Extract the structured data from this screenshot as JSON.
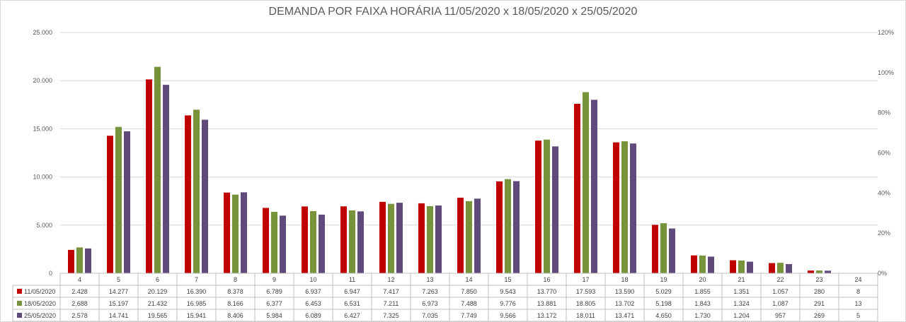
{
  "chart_data": {
    "type": "bar",
    "title": "DEMANDA POR FAIXA HORÁRIA 11/05/2020 x 18/05/2020 x 25/05/2020",
    "categories": [
      "4",
      "5",
      "6",
      "7",
      "8",
      "9",
      "10",
      "11",
      "12",
      "13",
      "14",
      "15",
      "16",
      "17",
      "18",
      "19",
      "20",
      "21",
      "22",
      "23",
      "24"
    ],
    "series": [
      {
        "name": "11/05/2020",
        "color": "#c00000",
        "values": [
          2428,
          14277,
          20129,
          16390,
          8378,
          6789,
          6937,
          6947,
          7417,
          7263,
          7850,
          9543,
          13770,
          17593,
          13590,
          5029,
          1855,
          1351,
          1057,
          280,
          8
        ],
        "labels": [
          "2.428",
          "14.277",
          "20.129",
          "16.390",
          "8.378",
          "6.789",
          "6.937",
          "6.947",
          "7.417",
          "7.263",
          "7.850",
          "9.543",
          "13.770",
          "17.593",
          "13.590",
          "5.029",
          "1.855",
          "1.351",
          "1.057",
          "280",
          "8"
        ]
      },
      {
        "name": "18/05/2020",
        "color": "#77933c",
        "values": [
          2688,
          15197,
          21432,
          16985,
          8166,
          6377,
          6453,
          6531,
          7211,
          6973,
          7488,
          9776,
          13881,
          18805,
          13702,
          5198,
          1843,
          1324,
          1087,
          291,
          13
        ],
        "labels": [
          "2.688",
          "15.197",
          "21.432",
          "16.985",
          "8.166",
          "6.377",
          "6.453",
          "6.531",
          "7.211",
          "6.973",
          "7.488",
          "9.776",
          "13.881",
          "18.805",
          "13.702",
          "5.198",
          "1.843",
          "1.324",
          "1.087",
          "291",
          "13"
        ]
      },
      {
        "name": "25/05/2020",
        "color": "#604a7b",
        "values": [
          2578,
          14741,
          19565,
          15941,
          8406,
          5984,
          6089,
          6427,
          7325,
          7035,
          7749,
          9566,
          13172,
          18011,
          13471,
          4650,
          1730,
          1204,
          957,
          269,
          5
        ],
        "labels": [
          "2.578",
          "14.741",
          "19.565",
          "15.941",
          "8.406",
          "5.984",
          "6.089",
          "6.427",
          "7.325",
          "7.035",
          "7.749",
          "9.566",
          "13.172",
          "18.011",
          "13.471",
          "4.650",
          "1.730",
          "1.204",
          "957",
          "269",
          "5"
        ]
      }
    ],
    "y_axis": {
      "min": 0,
      "max": 25000,
      "step": 5000,
      "tick_labels": [
        "0",
        "5.000",
        "10.000",
        "15.000",
        "20.000",
        "25.000"
      ]
    },
    "y2_axis": {
      "min": 0,
      "max": 1.2,
      "step": 0.2,
      "tick_labels": [
        "0%",
        "20%",
        "40%",
        "60%",
        "80%",
        "100%",
        "120%"
      ]
    },
    "grid": true,
    "legend": "data-table"
  }
}
